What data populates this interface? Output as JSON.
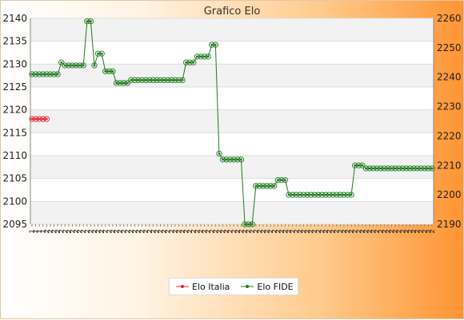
{
  "chart_data": {
    "type": "line",
    "title": "Grafico Elo",
    "left_axis": {
      "ylim": [
        2095,
        2140
      ],
      "ticks": [
        "2095",
        "2100",
        "2105",
        "2110",
        "2115",
        "2120",
        "2125",
        "2130",
        "2135",
        "2140"
      ]
    },
    "right_axis": {
      "ylim": [
        2190,
        2260
      ],
      "ticks": [
        "2190",
        "2200",
        "2210",
        "2220",
        "2230",
        "2240",
        "2250",
        "2260"
      ]
    },
    "grid": true,
    "legend_position": "bottom-center",
    "series": [
      {
        "name": "Elo Italia",
        "color": "#e8232a",
        "axis": "left",
        "values": [
          2118,
          2118,
          2118,
          2118,
          2118
        ]
      },
      {
        "name": "Elo FIDE",
        "color": "#1f7a1f",
        "axis": "right",
        "values": [
          2241,
          2241,
          2241,
          2241,
          2241,
          2241,
          2241,
          2241,
          2245,
          2244,
          2244,
          2244,
          2244,
          2244,
          2244,
          2259,
          2259,
          2244,
          2248,
          2248,
          2242,
          2242,
          2242,
          2238,
          2238,
          2238,
          2238,
          2239,
          2239,
          2239,
          2239,
          2239,
          2239,
          2239,
          2239,
          2239,
          2239,
          2239,
          2239,
          2239,
          2239,
          2239,
          2245,
          2245,
          2245,
          2247,
          2247,
          2247,
          2247,
          2251,
          2251,
          2214,
          2212,
          2212,
          2212,
          2212,
          2212,
          2212,
          2190,
          2190,
          2190,
          2203,
          2203,
          2203,
          2203,
          2203,
          2203,
          2205,
          2205,
          2205,
          2200,
          2200,
          2200,
          2200,
          2200,
          2200,
          2200,
          2200,
          2200,
          2200,
          2200,
          2200,
          2200,
          2200,
          2200,
          2200,
          2200,
          2200,
          2210,
          2210,
          2210,
          2209,
          2209,
          2209,
          2209,
          2209,
          2209,
          2209,
          2209,
          2209,
          2209,
          2209,
          2209,
          2209,
          2209,
          2209,
          2209,
          2209,
          2209,
          2209
        ]
      }
    ],
    "x_labels_first": "1",
    "x_labels_repeat": "2"
  }
}
